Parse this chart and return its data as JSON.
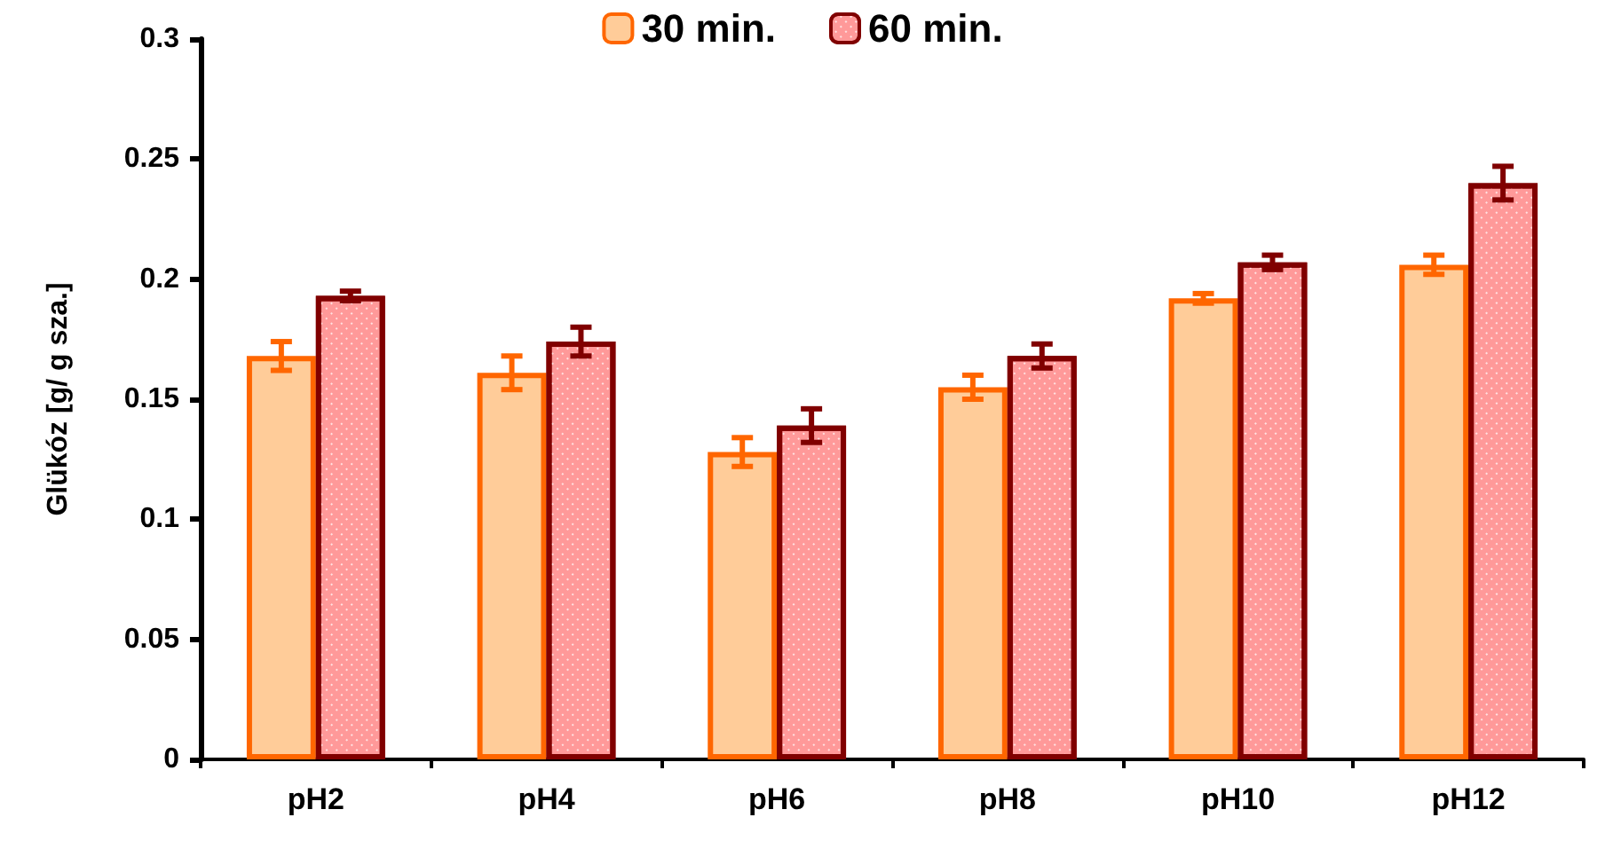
{
  "chart_data": {
    "type": "bar",
    "ylabel": "Glükóz [g/ g sza.]",
    "categories": [
      "pH2",
      "pH4",
      "pH6",
      "pH8",
      "pH10",
      "pH12"
    ],
    "series": [
      {
        "name": "30 min.",
        "color": "#ffcc99",
        "values": [
          0.168,
          0.161,
          0.128,
          0.155,
          0.192,
          0.206
        ],
        "errors": [
          0.006,
          0.007,
          0.006,
          0.005,
          0.002,
          0.004
        ]
      },
      {
        "name": "60 min.",
        "color": "#ff9999",
        "values": [
          0.193,
          0.174,
          0.139,
          0.168,
          0.207,
          0.24
        ],
        "errors": [
          0.002,
          0.006,
          0.007,
          0.005,
          0.003,
          0.007
        ]
      }
    ],
    "ylim": [
      0,
      0.3
    ],
    "yticks": [
      0,
      0.05,
      0.1,
      0.15,
      0.2,
      0.25,
      0.3
    ],
    "grid": false,
    "legend": "top"
  }
}
